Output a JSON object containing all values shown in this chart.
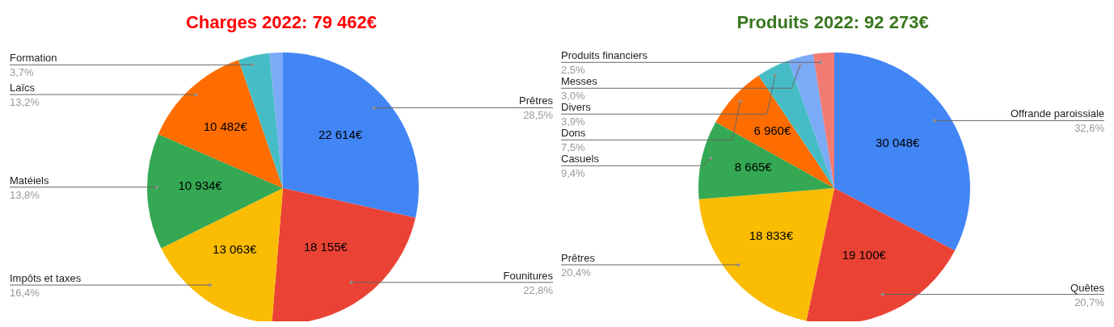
{
  "chart_data": [
    {
      "type": "pie",
      "title": "Charges 2022: 79 462€",
      "categories": [
        "Prêtres",
        "Founitures",
        "Impôts et taxes",
        "Matéiels",
        "Laïcs",
        "Formation",
        null
      ],
      "values": [
        28.5,
        22.8,
        16.4,
        13.8,
        13.2,
        3.7,
        1.6
      ],
      "colors": [
        "#4285f4",
        "#ea4335",
        "#fbbc04",
        "#34a853",
        "#ff6d01",
        "#46bdc6",
        "#7baaf7"
      ],
      "value_labels": [
        "28,5%",
        "22,8%",
        "16,4%",
        "13,8%",
        "13,2%",
        "3,7%",
        null
      ],
      "annotations": [
        {
          "text": "22 614€",
          "x": "Prêtres"
        },
        {
          "text": "18 155€",
          "x": "Founitures"
        },
        {
          "text": "13 063€",
          "x": "Impôts et taxes"
        },
        {
          "text": "10 934€",
          "x": "Matéiels"
        },
        {
          "text": "10 482€",
          "x": "Laïcs"
        }
      ]
    },
    {
      "type": "pie",
      "title": "Produits 2022: 92 273€",
      "categories": [
        "Offrande paroissiale",
        "Quêtes",
        "Prêtres",
        "Casuels",
        "Dons",
        "Divers",
        "Messes",
        "Produits financiers"
      ],
      "values": [
        32.6,
        20.7,
        20.4,
        9.4,
        7.5,
        3.9,
        3.0,
        2.5
      ],
      "colors": [
        "#4285f4",
        "#ea4335",
        "#fbbc04",
        "#34a853",
        "#ff6d01",
        "#46bdc6",
        "#7baaf7",
        "#f07b72"
      ],
      "value_labels": [
        "32,6%",
        "20,7%",
        "20,4%",
        "9,4%",
        "7,5%",
        "3,9%",
        "3,0%",
        "2,5%"
      ],
      "annotations": [
        {
          "text": "30 048€",
          "x": "Offrande paroissiale"
        },
        {
          "text": "19 100€",
          "x": "Quêtes"
        },
        {
          "text": "18 833€",
          "x": "Prêtres"
        },
        {
          "text": "8 665€",
          "x": "Casuels"
        },
        {
          "text": "6 960€",
          "x": "Dons"
        }
      ]
    }
  ]
}
